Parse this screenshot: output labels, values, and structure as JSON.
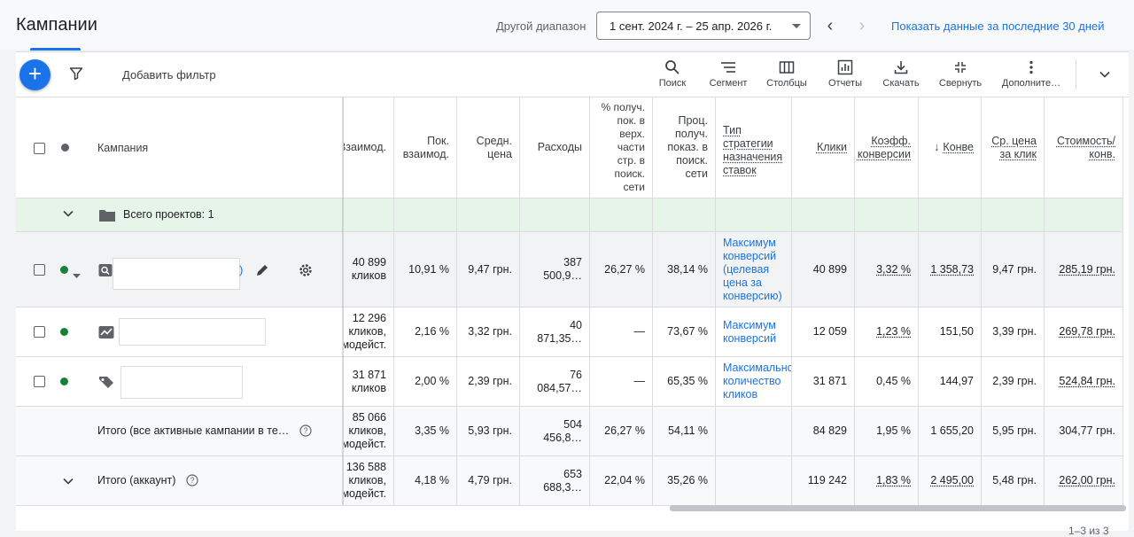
{
  "header": {
    "title": "Кампании",
    "range_label": "Другой диапазон",
    "range_value": "1 сент. 2024 г. – 25 апр. 2026 г.",
    "show_30": "Показать данные за последние 30 дней",
    "prev_icon": "chevron-left-icon",
    "next_icon": "chevron-right-icon"
  },
  "toolbar": {
    "add_filter": "Добавить фильтр",
    "tools": [
      {
        "label": "Поиск",
        "icon": "search-icon"
      },
      {
        "label": "Сегмент",
        "icon": "segment-icon"
      },
      {
        "label": "Столбцы",
        "icon": "columns-icon"
      },
      {
        "label": "Отчеты",
        "icon": "reports-icon"
      },
      {
        "label": "Скачать",
        "icon": "download-icon"
      },
      {
        "label": "Свернуть",
        "icon": "collapse-icon"
      },
      {
        "label": "Дополните…",
        "icon": "more-vert-icon"
      }
    ]
  },
  "table": {
    "campaign_header": "Кампания",
    "columns": [
      "Взаимод.",
      "Пок. взаимод.",
      "Средн. цена",
      "Расходы",
      "% получ. пок. в верх. части стр. в поиск. сети",
      "Проц. получ. показ. в поиск. сети",
      "Тип стратегии назначения ставок",
      "Клики",
      "Коэфф. конверсии",
      "Конве",
      "Ср. цена за клик",
      "Стоимость/ конв."
    ],
    "group_label": "Всего проектов: 1",
    "rows": [
      {
        "cells": [
          "40 899 кликов",
          "10,91 %",
          "9,47 грн.",
          "387 500,9…",
          "26,27 %",
          "38,14 %",
          "Максимум конверсий (целевая цена за конверсию)",
          "40 899",
          "3,32 %",
          "1 358,73",
          "9,47 грн.",
          "285,19 грн."
        ]
      },
      {
        "cells": [
          "12 296 кликов, модейст.",
          "2,16 %",
          "3,32 грн.",
          "40 871,35…",
          "—",
          "73,67 %",
          "Максимум конверсий",
          "12 059",
          "1,23 %",
          "151,50",
          "3,39 грн.",
          "269,78 грн."
        ]
      },
      {
        "cells": [
          "31 871 кликов",
          "2,00 %",
          "2,39 грн.",
          "76 084,57…",
          "—",
          "65,35 %",
          "Максимальное количество кликов",
          "31 871",
          "0,45 %",
          "144,97",
          "2,39 грн.",
          "524,84 грн."
        ]
      }
    ],
    "totals": [
      {
        "label": "Итого (все активные кампании в те…",
        "cells": [
          "85 066 кликов, модейст.",
          "3,35 %",
          "5,93 грн.",
          "504 456,8…",
          "26,27 %",
          "54,11 %",
          "",
          "84 829",
          "1,95 %",
          "1 655,20",
          "5,95 грн.",
          "304,77 грн."
        ]
      },
      {
        "label": "Итого (аккаунт)",
        "cells": [
          "136 588 кликов, модейст.",
          "4,18 %",
          "4,79 грн.",
          "653 688,3…",
          "22,04 %",
          "35,26 %",
          "",
          "119 242",
          "1,83 %",
          "2 495,00",
          "5,48 грн.",
          "262,00 грн."
        ]
      }
    ],
    "pager": "1–3 из 3"
  },
  "colors": {
    "accent": "#1a73e8",
    "status_green": "#188038",
    "group_bg": "#e6f4ea"
  }
}
